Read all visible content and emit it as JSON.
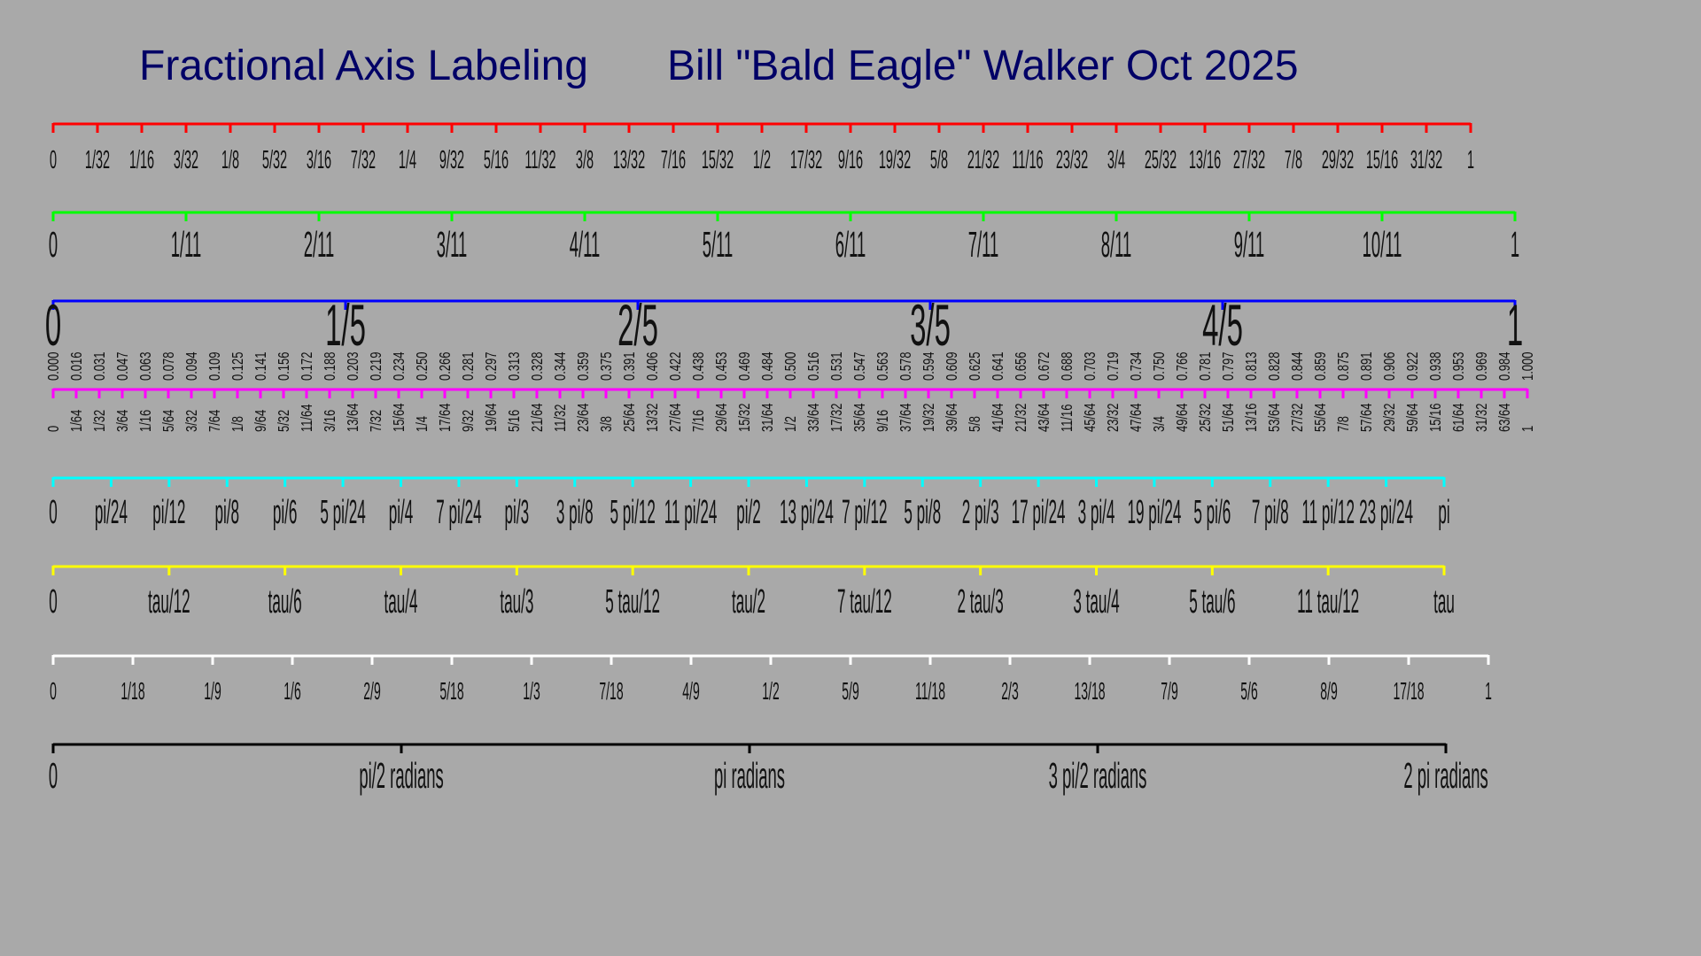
{
  "title": {
    "main": "Fractional Axis Labeling",
    "author": "Bill \"Bald Eagle\" Walker Oct 2025",
    "color": "#000066"
  },
  "background_color": "#a9a9a9",
  "chart_data": {
    "type": "axes",
    "axes": [
      {
        "color": "#ff0000",
        "range": [
          0,
          1
        ],
        "tick_step": 0.03125,
        "tick_labels": [
          "0",
          "1/32",
          "1/16",
          "3/32",
          "1/8",
          "5/32",
          "3/16",
          "7/32",
          "1/4",
          "9/32",
          "5/16",
          "11/32",
          "3/8",
          "13/32",
          "7/16",
          "15/32",
          "1/2",
          "17/32",
          "9/16",
          "19/32",
          "5/8",
          "21/32",
          "11/16",
          "23/32",
          "3/4",
          "25/32",
          "13/16",
          "27/32",
          "7/8",
          "29/32",
          "15/16",
          "31/32",
          "1"
        ]
      },
      {
        "color": "#00ff00",
        "range": [
          0,
          1
        ],
        "tick_step": 0.0909091,
        "tick_labels": [
          "0",
          "1/11",
          "2/11",
          "3/11",
          "4/11",
          "5/11",
          "6/11",
          "7/11",
          "8/11",
          "9/11",
          "10/11",
          "1"
        ]
      },
      {
        "color": "#0000ff",
        "range": [
          0,
          1
        ],
        "tick_step": 0.2,
        "tick_labels": [
          "0",
          "1/5",
          "2/5",
          "3/5",
          "4/5",
          "1"
        ]
      },
      {
        "color": "#ff00ff",
        "range": [
          0,
          1
        ],
        "tick_step": 0.015625,
        "decimal_labels": [
          "0.000",
          "0.016",
          "0.031",
          "0.047",
          "0.063",
          "0.078",
          "0.094",
          "0.109",
          "0.125",
          "0.141",
          "0.156",
          "0.172",
          "0.188",
          "0.203",
          "0.219",
          "0.234",
          "0.250",
          "0.266",
          "0.281",
          "0.297",
          "0.313",
          "0.328",
          "0.344",
          "0.359",
          "0.375",
          "0.391",
          "0.406",
          "0.422",
          "0.438",
          "0.453",
          "0.469",
          "0.484",
          "0.500",
          "0.516",
          "0.531",
          "0.547",
          "0.563",
          "0.578",
          "0.594",
          "0.609",
          "0.625",
          "0.641",
          "0.656",
          "0.672",
          "0.688",
          "0.703",
          "0.719",
          "0.734",
          "0.750",
          "0.766",
          "0.781",
          "0.797",
          "0.813",
          "0.828",
          "0.844",
          "0.859",
          "0.875",
          "0.891",
          "0.906",
          "0.922",
          "0.938",
          "0.953",
          "0.969",
          "0.984",
          "1.000"
        ],
        "tick_labels": [
          "0",
          "1/64",
          "1/32",
          "3/64",
          "1/16",
          "5/64",
          "3/32",
          "7/64",
          "1/8",
          "9/64",
          "5/32",
          "11/64",
          "3/16",
          "13/64",
          "7/32",
          "15/64",
          "1/4",
          "17/64",
          "9/32",
          "19/64",
          "5/16",
          "21/64",
          "11/32",
          "23/64",
          "3/8",
          "25/64",
          "13/32",
          "27/64",
          "7/16",
          "29/64",
          "15/32",
          "31/64",
          "1/2",
          "33/64",
          "17/32",
          "35/64",
          "9/16",
          "37/64",
          "19/32",
          "39/64",
          "5/8",
          "41/64",
          "21/32",
          "43/64",
          "11/16",
          "45/64",
          "23/32",
          "47/64",
          "3/4",
          "49/64",
          "25/32",
          "51/64",
          "13/16",
          "53/64",
          "27/32",
          "55/64",
          "7/8",
          "57/64",
          "29/32",
          "59/64",
          "15/16",
          "61/64",
          "31/32",
          "63/64",
          "1"
        ]
      },
      {
        "color": "#00ffff",
        "range": [
          0,
          3.14159265
        ],
        "tick_step": 0.13089969,
        "tick_labels": [
          "0",
          "pi/24",
          "pi/12",
          "pi/8",
          "pi/6",
          "5 pi/24",
          "pi/4",
          "7 pi/24",
          "pi/3",
          "3 pi/8",
          "5 pi/12",
          "11 pi/24",
          "pi/2",
          "13 pi/24",
          "7 pi/12",
          "5 pi/8",
          "2 pi/3",
          "17 pi/24",
          "3 pi/4",
          "19 pi/24",
          "5 pi/6",
          "7 pi/8",
          "11 pi/12",
          "23 pi/24",
          "pi"
        ]
      },
      {
        "color": "#ffff00",
        "range": [
          0,
          6.28318531
        ],
        "tick_step": 0.52359878,
        "tick_labels": [
          "0",
          "tau/12",
          "tau/6",
          "tau/4",
          "tau/3",
          "5 tau/12",
          "tau/2",
          "7 tau/12",
          "2 tau/3",
          "3 tau/4",
          "5 tau/6",
          "11 tau/12",
          "tau"
        ]
      },
      {
        "color": "#ffffff",
        "range": [
          0,
          1
        ],
        "tick_step": 0.0555556,
        "tick_labels": [
          "0",
          "1/18",
          "1/9",
          "1/6",
          "2/9",
          "5/18",
          "1/3",
          "7/18",
          "4/9",
          "1/2",
          "5/9",
          "11/18",
          "2/3",
          "13/18",
          "7/9",
          "5/6",
          "8/9",
          "17/18",
          "1"
        ]
      },
      {
        "color": "#000000",
        "range": [
          0,
          6.28318531
        ],
        "tick_step": 1.57079633,
        "tick_labels": [
          "0",
          "pi/2 radians",
          "pi radians",
          "3 pi/2 radians",
          "2 pi radians"
        ]
      }
    ]
  }
}
